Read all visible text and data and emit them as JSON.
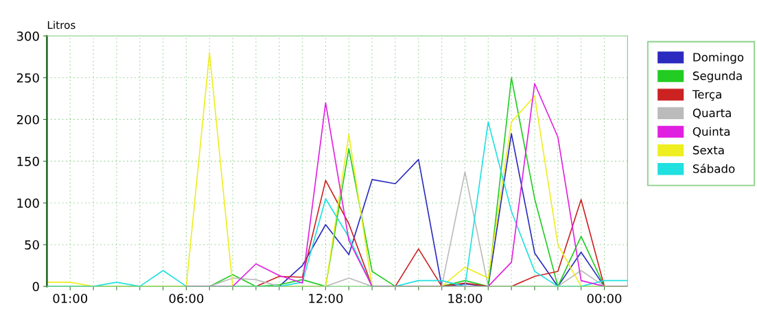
{
  "chart_data": {
    "type": "line",
    "ylabel": "Litros",
    "x": [
      0,
      1,
      2,
      3,
      4,
      5,
      6,
      7,
      8,
      9,
      10,
      11,
      12,
      13,
      14,
      15,
      16,
      17,
      18,
      19,
      20,
      21,
      22,
      23,
      24,
      25
    ],
    "xlim": [
      0,
      25
    ],
    "xticks": [
      {
        "value": 1,
        "label": "01:00"
      },
      {
        "value": 2,
        "label": null
      },
      {
        "value": 3,
        "label": null
      },
      {
        "value": 4,
        "label": null
      },
      {
        "value": 5,
        "label": null
      },
      {
        "value": 6,
        "label": "06:00"
      },
      {
        "value": 7,
        "label": null
      },
      {
        "value": 8,
        "label": null
      },
      {
        "value": 9,
        "label": null
      },
      {
        "value": 10,
        "label": null
      },
      {
        "value": 11,
        "label": null
      },
      {
        "value": 12,
        "label": "12:00"
      },
      {
        "value": 13,
        "label": null
      },
      {
        "value": 14,
        "label": null
      },
      {
        "value": 15,
        "label": null
      },
      {
        "value": 16,
        "label": null
      },
      {
        "value": 17,
        "label": null
      },
      {
        "value": 18,
        "label": "18:00"
      },
      {
        "value": 19,
        "label": null
      },
      {
        "value": 20,
        "label": null
      },
      {
        "value": 21,
        "label": null
      },
      {
        "value": 22,
        "label": null
      },
      {
        "value": 23,
        "label": null
      },
      {
        "value": 24,
        "label": "00:00"
      }
    ],
    "ylim": [
      0,
      300
    ],
    "yticks": [
      0,
      50,
      100,
      150,
      200,
      250,
      300
    ],
    "grid": true,
    "legend": "right",
    "marker": "none",
    "line_style": "solid",
    "series": [
      {
        "name": "Domingo",
        "color": "#2b2bc0",
        "values": [
          null,
          null,
          null,
          null,
          null,
          null,
          null,
          null,
          null,
          0,
          0,
          25,
          74,
          38,
          128,
          123,
          152,
          0,
          3,
          0,
          183,
          40,
          0,
          41,
          0,
          0
        ]
      },
      {
        "name": "Segunda",
        "color": "#22cc22",
        "values": [
          0,
          0,
          0,
          0,
          0,
          0,
          0,
          0,
          14,
          0,
          2,
          8,
          0,
          165,
          18,
          0,
          0,
          0,
          7,
          0,
          250,
          105,
          0,
          60,
          0,
          0
        ]
      },
      {
        "name": "Terça",
        "color": "#cc2222",
        "values": [
          null,
          null,
          null,
          null,
          null,
          null,
          null,
          null,
          0,
          0,
          12,
          11,
          127,
          75,
          0,
          0,
          45,
          0,
          4,
          0,
          0,
          12,
          18,
          104,
          0,
          0
        ]
      },
      {
        "name": "Quarta",
        "color": "#bbbbbb",
        "values": [
          0,
          0,
          0,
          0,
          0,
          0,
          0,
          0,
          10,
          8,
          0,
          0,
          0,
          10,
          0,
          0,
          0,
          0,
          137,
          0,
          0,
          0,
          0,
          19,
          0,
          0
        ]
      },
      {
        "name": "Quinta",
        "color": "#e020e0",
        "values": [
          null,
          null,
          null,
          null,
          null,
          null,
          0,
          0,
          0,
          27,
          13,
          4,
          220,
          55,
          0,
          0,
          0,
          0,
          0,
          0,
          29,
          243,
          179,
          7,
          0,
          0
        ]
      },
      {
        "name": "Sexta",
        "color": "#eeee20",
        "values": [
          5,
          5,
          0,
          0,
          0,
          0,
          0,
          280,
          0,
          0,
          0,
          0,
          0,
          182,
          0,
          0,
          0,
          0,
          23,
          10,
          197,
          228,
          50,
          0,
          0,
          0
        ]
      },
      {
        "name": "Sábado",
        "color": "#20e0e0",
        "values": [
          0,
          0,
          0,
          5,
          0,
          19,
          0,
          0,
          0,
          0,
          0,
          5,
          105,
          59,
          0,
          0,
          7,
          7,
          0,
          197,
          90,
          18,
          0,
          0,
          7,
          7
        ]
      }
    ]
  }
}
